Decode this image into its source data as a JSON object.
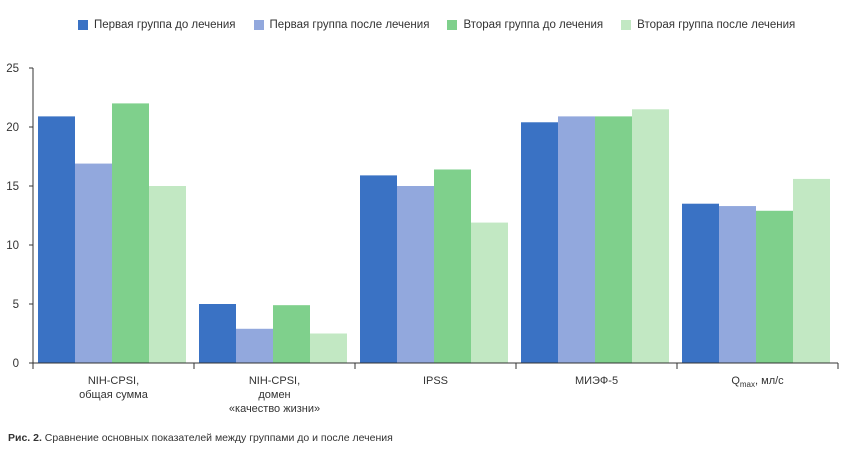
{
  "chart_data": {
    "type": "bar",
    "categories": [
      [
        "NIH-CPSI,",
        "общая сумма"
      ],
      [
        "NIH-CPSI,",
        "домен",
        "«качество жизни»"
      ],
      [
        "IPSS"
      ],
      [
        "МИЭФ-5"
      ],
      [
        "Q_max, мл/с"
      ]
    ],
    "series": [
      {
        "name": "Первая группа до лечения",
        "color": "#3a72c4",
        "values": [
          20.9,
          5.0,
          15.9,
          20.4,
          13.5
        ]
      },
      {
        "name": "Первая группа после лечения",
        "color": "#92a8dd",
        "values": [
          16.9,
          2.9,
          15.0,
          20.9,
          13.3
        ]
      },
      {
        "name": "Вторая группа до лечения",
        "color": "#7fd08c",
        "values": [
          22.0,
          4.9,
          16.4,
          20.9,
          12.9
        ]
      },
      {
        "name": "Вторая группа после лечения",
        "color": "#c2e8c3",
        "values": [
          15.0,
          2.5,
          11.9,
          21.5,
          15.6
        ]
      }
    ],
    "ylim": [
      0,
      25
    ],
    "yticks": [
      0,
      5,
      10,
      15,
      20,
      25
    ],
    "grid": false,
    "legend": "top"
  },
  "qmax_label": {
    "main": "Q",
    "sub": "max",
    "rest": ", мл/с"
  },
  "caption": {
    "prefix": "Рис. 2.",
    "text": " Сравнение основных показателей между группами до и после лечения"
  }
}
